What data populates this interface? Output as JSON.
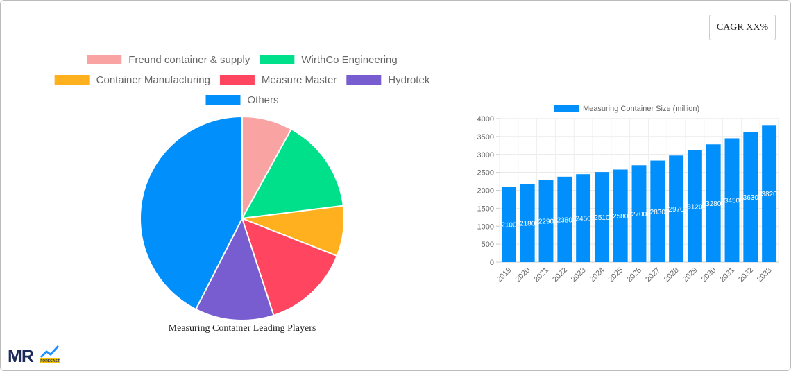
{
  "header": {
    "cagr": "CAGR XX%"
  },
  "logo": {
    "text": "MR",
    "sub": "FORECAST"
  },
  "chart_data": [
    {
      "type": "pie",
      "title": "Measuring Container Leading Players",
      "categories": [
        "Freund container & supply",
        "WirthCo Engineering",
        "Container Manufacturing",
        "Measure Master",
        "Hydrotek",
        "Others"
      ],
      "values": [
        8,
        15,
        8,
        14,
        12.5,
        42.5
      ],
      "colors": [
        "#f9a3a3",
        "#00e08a",
        "#ffb01f",
        "#ff4560",
        "#775dd0",
        "#008ffb"
      ]
    },
    {
      "type": "bar",
      "categories": [
        "2019",
        "2020",
        "2021",
        "2022",
        "2023",
        "2024",
        "2025",
        "2026",
        "2027",
        "2028",
        "2029",
        "2030",
        "2031",
        "2032",
        "2033"
      ],
      "series": [
        {
          "name": "Measuring Container Size (million)",
          "color": "#008ffb",
          "values": [
            2100,
            2180,
            2290,
            2380,
            2450,
            2510,
            2580,
            2700,
            2830,
            2970,
            3120,
            3280,
            3450,
            3630,
            3820
          ]
        }
      ],
      "ylim": [
        0,
        4000
      ],
      "yticks": [
        0,
        500,
        1000,
        1500,
        2000,
        2500,
        3000,
        3500,
        4000
      ],
      "grid": true
    }
  ]
}
